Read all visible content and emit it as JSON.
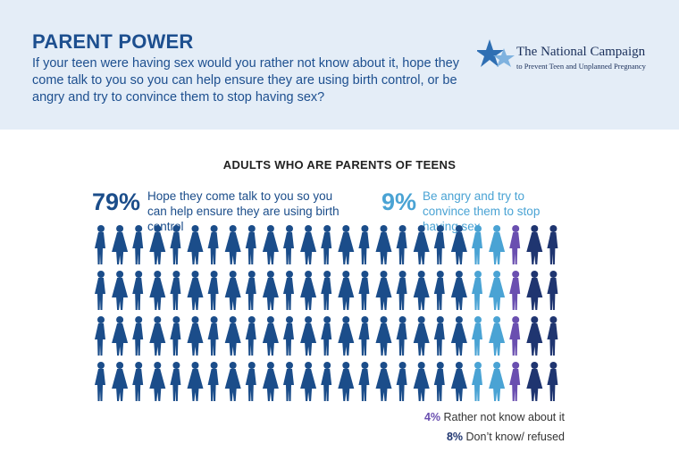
{
  "header": {
    "title": "PARENT POWER",
    "question": "If your teen were having sex would you rather not know about it, hope they come talk to you so you can help ensure they are using birth control, or be angry and try to convince them to stop having sex?",
    "logo_name": "The National Campaign",
    "logo_tagline": "to Prevent Teen and Unplanned Pregnancy"
  },
  "subtitle": "ADULTS WHO ARE PARENTS OF TEENS",
  "chart_data": {
    "type": "pictogram",
    "title": "ADULTS WHO ARE PARENTS OF TEENS",
    "total_icons": 100,
    "series": [
      {
        "pct": "79%",
        "value": 79,
        "label": "Hope they come talk to you so you can help ensure they are using birth control",
        "color": "#1b4d8a"
      },
      {
        "pct": "9%",
        "value": 9,
        "label": "Be angry and try to convince them to stop having sex",
        "color": "#4aa3d4"
      },
      {
        "pct": "4%",
        "value": 4,
        "label": "Rather not know about it",
        "color": "#6a4fb0"
      },
      {
        "pct": "8%",
        "value": 8,
        "label": "Don’t know/ refused",
        "color": "#1f3570"
      }
    ]
  }
}
